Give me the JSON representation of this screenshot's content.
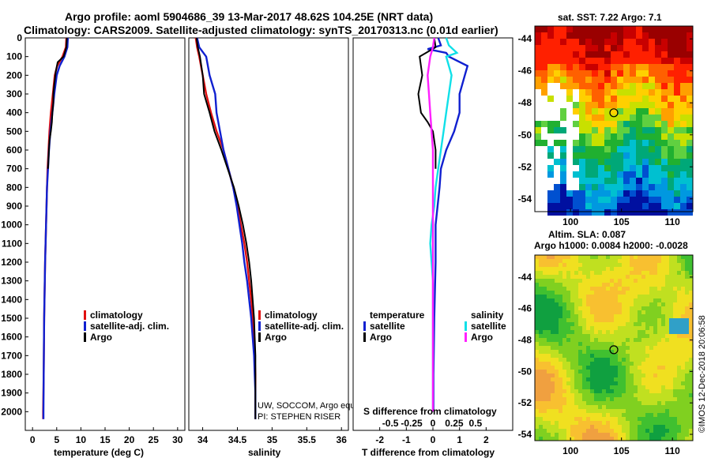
{
  "header": {
    "line1": "Argo profile: aoml 5904686_39 13-Mar-2017 48.62S 104.25E (NRT data)",
    "line2": "Climatology: CARS2009. Satellite-adjusted climatology: synTS_20170313.nc (0.01d earlier)"
  },
  "credits": {
    "line1": "UW, SOCCOM, Argo equivalent",
    "line2": "PI: STEPHEN RISER",
    "stamp": "©IMOS 12-Dec-2018 20:06:58"
  },
  "colors": {
    "climatology": "#e01010",
    "satellite": "#1020d0",
    "argo": "#000000",
    "sal_satellite": "#10e0e8",
    "sal_argo": "#ff20ff"
  },
  "chart_data": [
    {
      "type": "line",
      "id": "temperature",
      "xlabel": "temperature (deg C)",
      "xlim": [
        -1.5,
        31.5
      ],
      "ylim": [
        2100,
        0
      ],
      "xticks": [
        "0",
        "5",
        "10",
        "15",
        "20",
        "25",
        "30"
      ],
      "xtick_values": [
        0,
        5,
        10,
        15,
        20,
        25,
        30
      ],
      "yticks": [
        "0",
        "100",
        "200",
        "300",
        "400",
        "500",
        "600",
        "700",
        "800",
        "900",
        "1000",
        "1100",
        "1200",
        "1300",
        "1400",
        "1500",
        "1600",
        "1700",
        "1800",
        "1900",
        "2000"
      ],
      "legend": [
        "climatology",
        "satellite-adj. clim.",
        "Argo"
      ],
      "series": [
        {
          "name": "climatology",
          "color_key": "climatology",
          "depth": [
            0,
            50,
            100,
            150,
            200,
            300,
            400,
            500,
            600,
            700,
            800,
            1000,
            1200,
            1500,
            1800,
            2000,
            2040
          ],
          "values": [
            7.0,
            6.9,
            6.2,
            5.1,
            4.6,
            4.2,
            3.8,
            3.5,
            3.3,
            3.1,
            3.0,
            2.8,
            2.6,
            2.4,
            2.3,
            2.2,
            2.2
          ]
        },
        {
          "name": "satellite-adj. clim.",
          "color_key": "satellite",
          "depth": [
            0,
            50,
            100,
            150,
            200,
            300,
            400,
            500,
            600,
            700,
            800,
            1000,
            1200,
            1500,
            1800,
            2000,
            2040
          ],
          "values": [
            7.3,
            7.2,
            6.6,
            5.6,
            5.0,
            4.5,
            4.1,
            3.7,
            3.4,
            3.2,
            3.0,
            2.8,
            2.6,
            2.4,
            2.3,
            2.25,
            2.25
          ]
        },
        {
          "name": "Argo",
          "color_key": "argo",
          "depth": [
            0,
            50,
            100,
            130,
            180,
            250,
            300,
            350,
            400,
            450,
            500,
            550,
            600,
            650,
            700
          ],
          "values": [
            7.1,
            7.0,
            6.4,
            5.2,
            4.8,
            4.5,
            4.3,
            4.3,
            4.1,
            4.0,
            3.8,
            3.5,
            3.4,
            3.3,
            3.2
          ]
        }
      ]
    },
    {
      "type": "line",
      "id": "salinity",
      "xlabel": "salinity",
      "xlim": [
        33.8,
        36.1
      ],
      "ylim": [
        2100,
        0
      ],
      "xticks": [
        "34",
        "34.5",
        "35",
        "35.5",
        "36"
      ],
      "xtick_values": [
        34,
        34.5,
        35,
        35.5,
        36
      ],
      "legend": [
        "climatology",
        "satellite-adj. clim.",
        "Argo"
      ],
      "series": [
        {
          "name": "climatology",
          "color_key": "climatology",
          "depth": [
            0,
            50,
            100,
            200,
            300,
            400,
            500,
            600,
            700,
            800,
            900,
            1000,
            1100,
            1200,
            1300,
            1400,
            1500,
            1600,
            1700,
            1800,
            1900,
            2000,
            2040
          ],
          "values": [
            33.9,
            33.92,
            33.95,
            34.0,
            34.05,
            34.12,
            34.2,
            34.3,
            34.37,
            34.44,
            34.5,
            34.55,
            34.6,
            34.64,
            34.67,
            34.7,
            34.72,
            34.74,
            34.75,
            34.76,
            34.76,
            34.76,
            34.76
          ]
        },
        {
          "name": "satellite-adj. clim.",
          "color_key": "satellite",
          "depth": [
            0,
            50,
            100,
            200,
            300,
            400,
            500,
            600,
            700,
            800,
            900,
            1000,
            1100,
            1200,
            1300,
            1400,
            1500,
            1600,
            1700,
            1800,
            1900,
            2000,
            2040
          ],
          "values": [
            33.92,
            33.95,
            34.05,
            34.1,
            34.18,
            34.2,
            34.25,
            34.3,
            34.37,
            34.44,
            34.49,
            34.53,
            34.57,
            34.6,
            34.64,
            34.67,
            34.7,
            34.72,
            34.74,
            34.75,
            34.76,
            34.76,
            34.76
          ]
        },
        {
          "name": "Argo",
          "color_key": "argo",
          "depth": [
            0,
            50,
            100,
            200,
            300,
            400,
            500,
            600,
            700,
            800,
            900,
            1000,
            1100,
            1200,
            1300,
            1400,
            1500,
            1600,
            1700,
            1800,
            1900,
            2000,
            2040
          ],
          "values": [
            33.91,
            33.93,
            33.96,
            34.0,
            34.02,
            34.1,
            34.17,
            34.27,
            34.36,
            34.45,
            34.52,
            34.58,
            34.63,
            34.67,
            34.7,
            34.72,
            34.74,
            34.75,
            34.76,
            34.76,
            34.76,
            34.76,
            34.76
          ]
        }
      ]
    },
    {
      "type": "line",
      "id": "difference",
      "xlabel": "T difference from climatology",
      "xlabel_top": "S difference from climatology",
      "xlim": [
        -3,
        3
      ],
      "ylim": [
        2100,
        0
      ],
      "xticks": [
        "-2",
        "-1",
        "0",
        "1",
        "2"
      ],
      "xtick_values": [
        -2,
        -1,
        0,
        1,
        2
      ],
      "xticks_top": [
        "-0.5",
        "-0.25",
        "0",
        "0.25",
        "0.5"
      ],
      "xtick_values_top": [
        -1.6,
        -0.8,
        0,
        0.8,
        1.6
      ],
      "legend_temperature": {
        "title": "temperature",
        "items": [
          "satellite",
          "Argo"
        ]
      },
      "legend_salinity": {
        "title": "salinity",
        "items": [
          "satellite",
          "Argo"
        ]
      },
      "series": [
        {
          "name": "temperature satellite",
          "color_key": "satellite",
          "depth": [
            0,
            40,
            60,
            80,
            100,
            150,
            200,
            300,
            400,
            500,
            600,
            700,
            800,
            1000,
            1200,
            1500,
            1800,
            2000
          ],
          "values": [
            0.2,
            0.3,
            -0.2,
            0.5,
            0.6,
            1.3,
            1.2,
            1.0,
            1.0,
            0.8,
            0.5,
            0.3,
            0.25,
            0.1,
            0.1,
            0.05,
            0.02,
            0.02
          ]
        },
        {
          "name": "temperature Argo",
          "color_key": "argo",
          "depth": [
            0,
            50,
            100,
            200,
            300,
            400,
            450,
            500,
            600,
            700
          ],
          "values": [
            0.05,
            0.1,
            -0.5,
            -0.4,
            -0.55,
            -0.45,
            -0.2,
            0.0,
            0.1,
            0.1
          ]
        },
        {
          "name": "salinity satellite",
          "color_key": "sal_satellite",
          "depth": [
            0,
            40,
            80,
            100,
            150,
            200,
            300,
            400,
            500,
            600,
            700,
            800,
            900,
            1000,
            1100,
            1200,
            1300,
            1400,
            1500,
            1600,
            1700,
            1800,
            1900,
            2000
          ],
          "values": [
            0.5,
            0.6,
            0.9,
            0.5,
            0.6,
            0.7,
            0.6,
            0.5,
            0.4,
            0.3,
            0.2,
            0.1,
            0.05,
            -0.05,
            -0.1,
            -0.05,
            0.0,
            0.0,
            0.0,
            0.0,
            0.0,
            0.0,
            0.0,
            0.0
          ]
        },
        {
          "name": "salinity Argo",
          "color_key": "sal_argo",
          "depth": [
            0,
            50,
            100,
            200,
            300,
            400,
            500,
            600,
            800,
            1000,
            1500,
            2000
          ],
          "values": [
            0.05,
            0.0,
            -0.1,
            -0.2,
            -0.15,
            -0.1,
            -0.05,
            0.0,
            0.0,
            0.0,
            0.0,
            0.0
          ]
        }
      ]
    },
    {
      "type": "heatmap",
      "id": "sst-map",
      "title": "sat. SST: 7.22 Argo: 7.1",
      "xticks": [
        "100",
        "105",
        "110"
      ],
      "xtick_values": [
        100,
        105,
        110
      ],
      "yticks": [
        "-44",
        "-46",
        "-48",
        "-50",
        "-52",
        "-54"
      ],
      "ytick_values": [
        -44,
        -46,
        -48,
        -50,
        -52,
        -54
      ],
      "xlim": [
        96.5,
        112
      ],
      "ylim": [
        -54.8,
        -43.2
      ],
      "argo_position": [
        104.25,
        -48.62
      ]
    },
    {
      "type": "heatmap",
      "id": "sla-map",
      "title": "Altim. SLA: 0.087",
      "subtitle": "Argo h1000: 0.0084 h2000: -0.0028",
      "xticks": [
        "100",
        "105",
        "110"
      ],
      "xtick_values": [
        100,
        105,
        110
      ],
      "yticks": [
        "-44",
        "-46",
        "-48",
        "-50",
        "-52",
        "-54"
      ],
      "ytick_values": [
        -44,
        -46,
        -48,
        -50,
        -52,
        -54
      ],
      "xlim": [
        96.5,
        112
      ],
      "ylim": [
        -54.4,
        -42.6
      ],
      "argo_position": [
        104.25,
        -48.62
      ]
    }
  ]
}
